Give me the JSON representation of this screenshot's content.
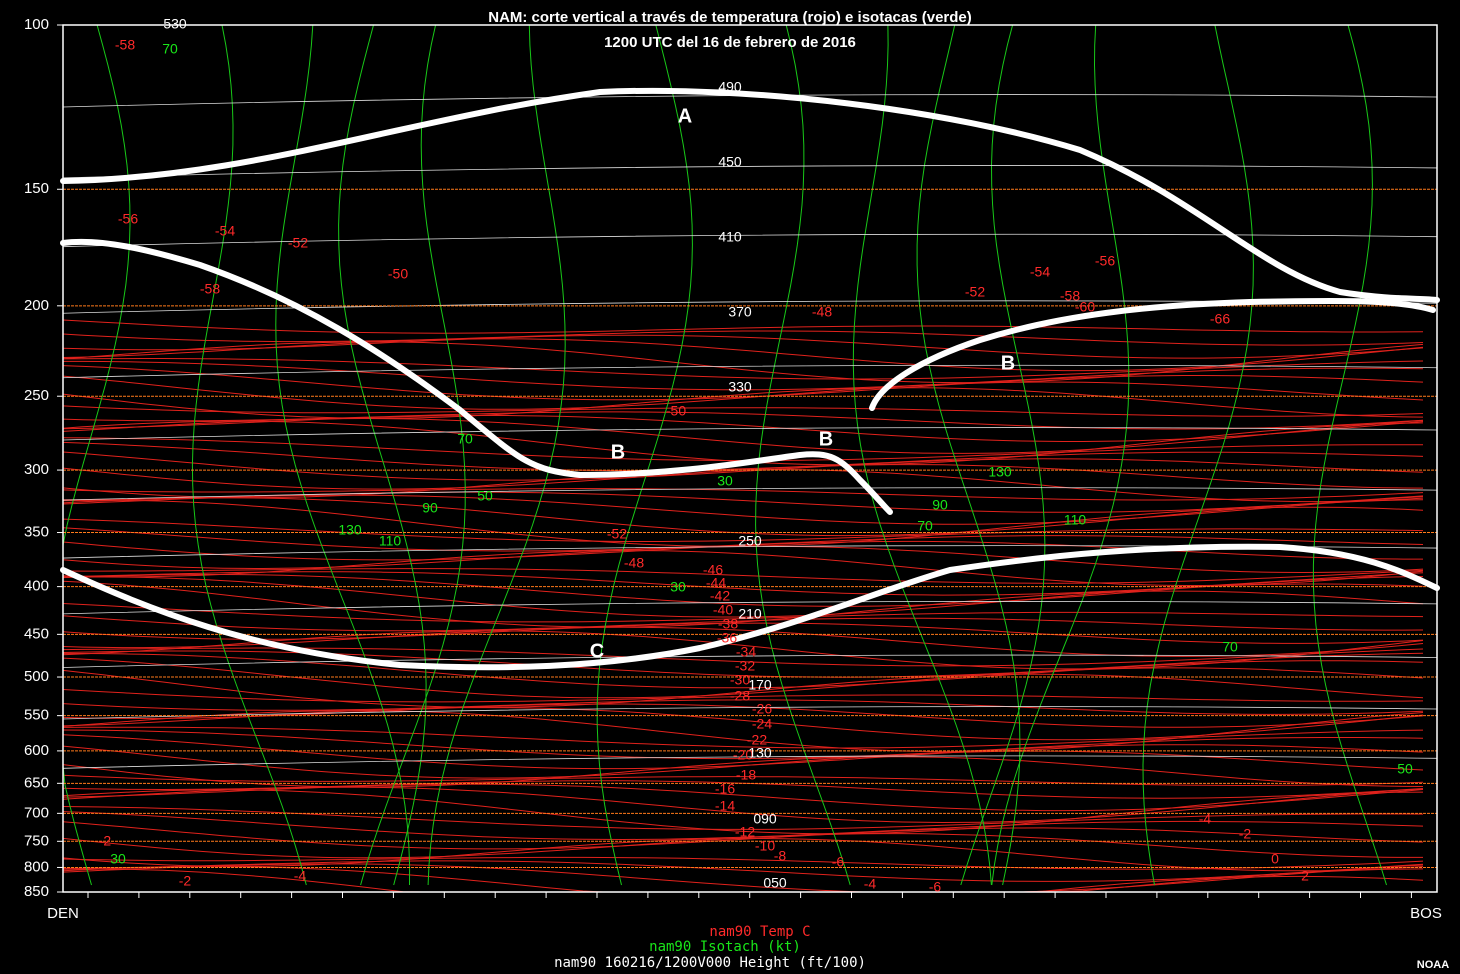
{
  "chart_data": {
    "type": "cross-section",
    "title": "NAM: corte vertical a través de temperatura (rojo) e isotacas (verde)",
    "subtitle": "1200 UTC del 16 de febrero de 2016",
    "ylim": [
      100,
      850
    ],
    "log_scale": true,
    "yticks": [
      100,
      150,
      200,
      250,
      300,
      350,
      400,
      450,
      500,
      550,
      600,
      650,
      700,
      750,
      800,
      850
    ],
    "x_start": "DEN",
    "x_end": "BOS",
    "legend": [
      "nam90 Temp C",
      "nam90 Isotach (kt)",
      "nam90 160216/1200V000 Height (ft/100)"
    ],
    "credit": "NOAA",
    "temperature_labels": [
      "-58",
      "-56",
      "-54",
      "-52",
      "-50",
      "-58",
      "-48",
      "-50",
      "-52",
      "-48",
      "-46",
      "-44",
      "-42",
      "-40",
      "-38",
      "-36",
      "-34",
      "-32",
      "-30",
      "-28",
      "-26",
      "-24",
      "-22",
      "-20",
      "-18",
      "-16",
      "-14",
      "-12",
      "-10",
      "-8",
      "-6",
      "-4",
      "-2",
      "-2",
      "-4",
      "-6",
      "-54",
      "-56",
      "-52",
      "-58",
      "-60",
      "-66",
      "-4",
      "-2",
      "0",
      "2"
    ],
    "isotach_labels": [
      "70",
      "70",
      "50",
      "90",
      "130",
      "110",
      "30",
      "30",
      "130",
      "110",
      "90",
      "70",
      "70",
      "50",
      "30"
    ],
    "height_labels": [
      "530",
      "490",
      "450",
      "410",
      "370",
      "330",
      "250",
      "210",
      "170",
      "130",
      "090",
      "050"
    ],
    "annotations": [
      "A",
      "B",
      "B",
      "B",
      "C"
    ]
  }
}
